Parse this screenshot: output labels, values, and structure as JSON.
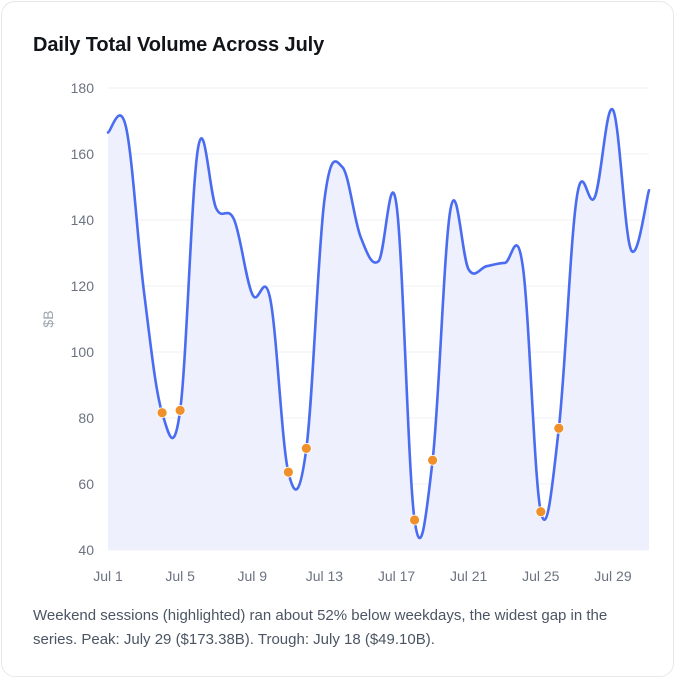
{
  "chart_data": {
    "type": "line",
    "title": "Daily Total Volume Across July",
    "xlabel": "",
    "ylabel": "$B",
    "ylim": [
      40,
      180
    ],
    "yticks": [
      40,
      60,
      80,
      100,
      120,
      140,
      160,
      180
    ],
    "xticks": [
      "Jul 1",
      "Jul 5",
      "Jul 9",
      "Jul 13",
      "Jul 17",
      "Jul 21",
      "Jul 25",
      "Jul 29"
    ],
    "x": [
      "Jul 1",
      "Jul 2",
      "Jul 3",
      "Jul 4",
      "Jul 5",
      "Jul 6",
      "Jul 7",
      "Jul 8",
      "Jul 9",
      "Jul 10",
      "Jul 11",
      "Jul 12",
      "Jul 13",
      "Jul 14",
      "Jul 15",
      "Jul 16",
      "Jul 17",
      "Jul 18",
      "Jul 19",
      "Jul 20",
      "Jul 21",
      "Jul 22",
      "Jul 23",
      "Jul 24",
      "Jul 25",
      "Jul 26",
      "Jul 27",
      "Jul 28",
      "Jul 29",
      "Jul 30",
      "Jul 31"
    ],
    "series": [
      {
        "values": [
          166.5,
          168.1,
          118,
          81.6,
          82.3,
          162,
          143.5,
          140,
          117.5,
          116,
          63.6,
          70.8,
          146,
          156,
          135,
          127.5,
          144.5,
          49.1,
          67.2,
          143.5,
          125,
          126,
          127,
          126,
          51.6,
          76.9,
          147,
          147,
          173.38,
          131,
          149
        ],
        "highlighted": [
          false,
          false,
          false,
          true,
          true,
          false,
          false,
          false,
          false,
          false,
          true,
          true,
          false,
          false,
          false,
          false,
          false,
          true,
          true,
          false,
          false,
          false,
          false,
          false,
          true,
          true,
          false,
          false,
          false,
          false,
          false
        ]
      }
    ],
    "colors": {
      "line": "#4a6cf0",
      "fill": "#eef0fd",
      "highlight": "#f0902a",
      "grid": "#eef0f3"
    },
    "grid": true,
    "legend": "none"
  },
  "caption": "Weekend sessions (highlighted) ran about 52% below weekdays, the widest gap in the series. Peak: July 29 ($173.38B). Trough: July 18 ($49.10B)."
}
